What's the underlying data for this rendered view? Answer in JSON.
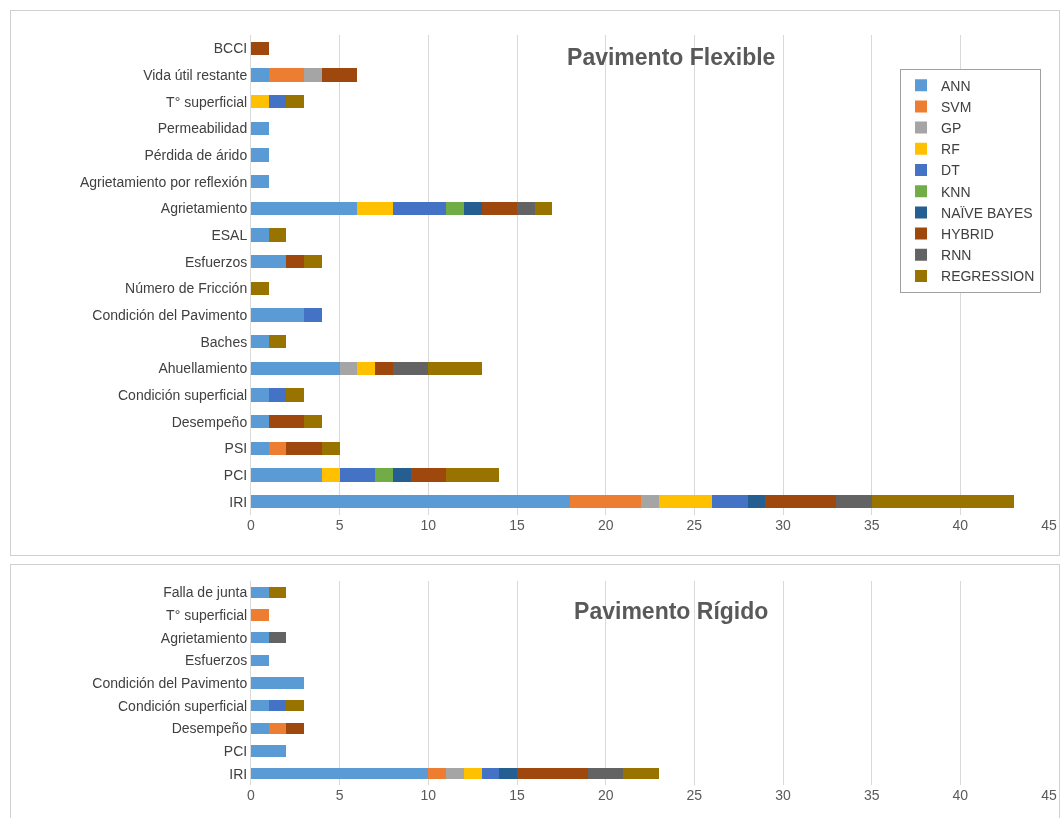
{
  "chart_data": [
    {
      "type": "bar",
      "orientation": "horizontal",
      "stacked": true,
      "title": "Pavimento Flexible",
      "legend": "top right",
      "grid": "x",
      "xlim": [
        0,
        45
      ],
      "xticks": [
        0,
        5,
        10,
        15,
        20,
        25,
        30,
        35,
        40,
        45
      ],
      "categories": [
        "BCCI",
        "Vida útil restante",
        "T° superficial",
        "Permeabilidad",
        "Pérdida de árido",
        "Agrietamiento por reflexión",
        "Agrietamiento",
        "ESAL",
        "Esfuerzos",
        "Número de Fricción",
        "Condición del Pavimento",
        "Baches",
        "Ahuellamiento",
        "Condición superficial",
        "Desempeño",
        "PSI",
        "PCI",
        "IRI"
      ],
      "series": [
        {
          "name": "ANN",
          "color": "#5b9bd5",
          "values": [
            null,
            1,
            null,
            1,
            1,
            1,
            6,
            1,
            2,
            null,
            3,
            1,
            5,
            1,
            1,
            1,
            4,
            18
          ]
        },
        {
          "name": "SVM",
          "color": "#ed7d31",
          "values": [
            null,
            2,
            null,
            null,
            null,
            null,
            null,
            null,
            null,
            null,
            null,
            null,
            null,
            null,
            null,
            1,
            null,
            4
          ]
        },
        {
          "name": "GP",
          "color": "#a5a5a5",
          "values": [
            null,
            1,
            null,
            null,
            null,
            null,
            null,
            null,
            null,
            null,
            null,
            null,
            1,
            null,
            null,
            null,
            null,
            1
          ]
        },
        {
          "name": "RF",
          "color": "#ffc000",
          "values": [
            null,
            null,
            1,
            null,
            null,
            null,
            2,
            null,
            null,
            null,
            null,
            null,
            1,
            null,
            null,
            null,
            1,
            3
          ]
        },
        {
          "name": "DT",
          "color": "#4472c4",
          "values": [
            null,
            null,
            1,
            null,
            null,
            null,
            3,
            null,
            null,
            null,
            1,
            null,
            null,
            1,
            null,
            null,
            2,
            2
          ]
        },
        {
          "name": "KNN",
          "color": "#70ad47",
          "values": [
            null,
            null,
            null,
            null,
            null,
            null,
            1,
            null,
            null,
            null,
            null,
            null,
            null,
            null,
            null,
            null,
            1,
            null
          ]
        },
        {
          "name": "NAÏVE BAYES",
          "color": "#255e91",
          "values": [
            null,
            null,
            null,
            null,
            null,
            null,
            1,
            null,
            null,
            null,
            null,
            null,
            null,
            null,
            null,
            null,
            1,
            1
          ]
        },
        {
          "name": "HYBRID",
          "color": "#9e480e",
          "values": [
            1,
            2,
            null,
            null,
            null,
            null,
            2,
            null,
            1,
            null,
            null,
            null,
            1,
            null,
            2,
            2,
            2,
            4
          ]
        },
        {
          "name": "RNN",
          "color": "#636363",
          "values": [
            null,
            null,
            null,
            null,
            null,
            null,
            1,
            null,
            null,
            null,
            null,
            null,
            2,
            null,
            null,
            null,
            null,
            2
          ]
        },
        {
          "name": "REGRESSION",
          "color": "#997300",
          "values": [
            null,
            null,
            1,
            null,
            null,
            null,
            1,
            1,
            1,
            1,
            null,
            1,
            3,
            1,
            1,
            1,
            3,
            8
          ]
        }
      ]
    },
    {
      "type": "bar",
      "orientation": "horizontal",
      "stacked": true,
      "title": "Pavimento Rígido",
      "grid": "x",
      "xlim": [
        0,
        45
      ],
      "xticks": [
        0,
        5,
        10,
        15,
        20,
        25,
        30,
        35,
        40,
        45
      ],
      "categories": [
        "Falla de junta",
        "T° superficial",
        "Agrietamiento",
        "Esfuerzos",
        "Condición del Pavimento",
        "Condición superficial",
        "Desempeño",
        "PCI",
        "IRI"
      ],
      "series": [
        {
          "color": "#5b9bd5",
          "values": [
            1,
            null,
            1,
            1,
            3,
            1,
            1,
            2,
            10
          ]
        },
        {
          "color": "#ed7d31",
          "values": [
            null,
            1,
            null,
            null,
            null,
            null,
            1,
            null,
            1
          ]
        },
        {
          "color": "#a5a5a5",
          "values": [
            null,
            null,
            null,
            null,
            null,
            null,
            null,
            null,
            1
          ]
        },
        {
          "color": "#ffc000",
          "values": [
            null,
            null,
            null,
            null,
            null,
            null,
            null,
            null,
            1
          ]
        },
        {
          "color": "#4472c4",
          "values": [
            null,
            null,
            null,
            null,
            null,
            1,
            null,
            null,
            1
          ]
        },
        {
          "color": "#255e91",
          "values": [
            null,
            null,
            null,
            null,
            null,
            null,
            null,
            null,
            1
          ]
        },
        {
          "color": "#9e480e",
          "values": [
            null,
            null,
            null,
            null,
            null,
            null,
            1,
            null,
            4
          ]
        },
        {
          "color": "#636363",
          "values": [
            null,
            null,
            1,
            null,
            null,
            null,
            null,
            null,
            2
          ]
        },
        {
          "color": "#997300",
          "values": [
            1,
            null,
            null,
            null,
            null,
            1,
            null,
            null,
            2
          ]
        }
      ]
    }
  ]
}
